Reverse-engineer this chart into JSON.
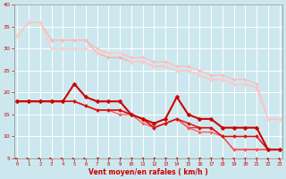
{
  "xlabel": "Vent moyen/en rafales ( km/h )",
  "background_color": "#cce8ee",
  "grid_color": "#ffffff",
  "x": [
    0,
    1,
    2,
    3,
    4,
    5,
    6,
    7,
    8,
    9,
    10,
    11,
    12,
    13,
    14,
    15,
    16,
    17,
    18,
    19,
    20,
    21,
    22,
    23
  ],
  "series": [
    {
      "data": [
        33,
        36,
        36,
        32,
        32,
        32,
        32,
        29,
        28,
        28,
        27,
        27,
        26,
        26,
        25,
        25,
        24,
        23,
        23,
        22,
        22,
        21,
        14,
        14
      ],
      "color": "#ffaaaa",
      "lw": 0.9,
      "marker": "D",
      "ms": 1.8,
      "zorder": 2
    },
    {
      "data": [
        33,
        36,
        36,
        32,
        32,
        32,
        32,
        30,
        29,
        29,
        28,
        28,
        27,
        27,
        26,
        26,
        25,
        24,
        24,
        23,
        23,
        22,
        14,
        14
      ],
      "color": "#ffbbbb",
      "lw": 0.9,
      "marker": "D",
      "ms": 1.8,
      "zorder": 2
    },
    {
      "data": [
        33,
        36,
        36,
        30,
        30,
        30,
        30,
        29,
        29,
        29,
        27,
        27,
        26,
        26,
        25,
        25,
        24,
        23,
        23,
        22,
        22,
        21,
        14,
        14
      ],
      "color": "#ffcccc",
      "lw": 0.9,
      "marker": "D",
      "ms": 1.8,
      "zorder": 2
    },
    {
      "data": [
        18,
        18,
        18,
        18,
        18,
        22,
        19,
        18,
        18,
        18,
        15,
        14,
        13,
        14,
        19,
        15,
        14,
        14,
        12,
        12,
        12,
        12,
        7,
        7
      ],
      "color": "#cc0000",
      "lw": 1.5,
      "marker": "D",
      "ms": 2.5,
      "zorder": 5
    },
    {
      "data": [
        18,
        18,
        18,
        18,
        18,
        18,
        17,
        16,
        16,
        16,
        15,
        14,
        12,
        13,
        14,
        13,
        12,
        12,
        10,
        10,
        10,
        10,
        7,
        7
      ],
      "color": "#dd1111",
      "lw": 1.1,
      "marker": "D",
      "ms": 2.0,
      "zorder": 4
    },
    {
      "data": [
        18,
        18,
        18,
        18,
        18,
        18,
        17,
        16,
        16,
        16,
        15,
        14,
        12,
        13,
        14,
        12,
        12,
        12,
        10,
        7,
        7,
        7,
        7,
        7
      ],
      "color": "#ee3333",
      "lw": 1.0,
      "marker": "D",
      "ms": 1.8,
      "zorder": 3
    },
    {
      "data": [
        18,
        18,
        18,
        18,
        18,
        18,
        17,
        16,
        16,
        15,
        15,
        13,
        12,
        13,
        14,
        12,
        11,
        11,
        10,
        7,
        7,
        7,
        7,
        7
      ],
      "color": "#ff5555",
      "lw": 0.9,
      "marker": "D",
      "ms": 1.6,
      "zorder": 3
    }
  ],
  "ylim": [
    5,
    40
  ],
  "xlim": [
    -0.3,
    23.3
  ],
  "yticks": [
    5,
    10,
    15,
    20,
    25,
    30,
    35,
    40
  ],
  "xticks": [
    0,
    1,
    2,
    3,
    4,
    5,
    6,
    7,
    8,
    9,
    10,
    11,
    12,
    13,
    14,
    15,
    16,
    17,
    18,
    19,
    20,
    21,
    22,
    23
  ],
  "arrow_color": "#cc0000",
  "arrow_angles": [
    80,
    80,
    80,
    85,
    80,
    75,
    70,
    60,
    55,
    50,
    45,
    42,
    40,
    38,
    35,
    33,
    30,
    28,
    25,
    22,
    20,
    18,
    15,
    12
  ]
}
